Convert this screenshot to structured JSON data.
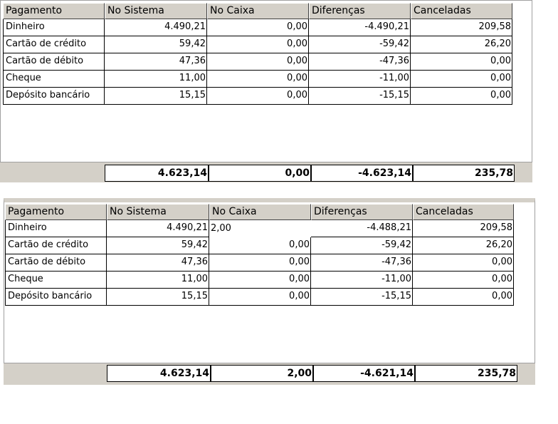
{
  "grids": [
    {
      "header": [
        "Pagamento",
        "No Sistema",
        "No Caixa",
        "Diferenças",
        "Canceladas"
      ],
      "rows": [
        [
          "Dinheiro",
          "4.490,21",
          "0,00",
          "-4.490,21",
          "209,58"
        ],
        [
          "Cartão de crédito",
          "59,42",
          "0,00",
          "-59,42",
          "26,20"
        ],
        [
          "Cartão de débito",
          "47,36",
          "0,00",
          "-47,36",
          "0,00"
        ],
        [
          "Cheque",
          "11,00",
          "0,00",
          "-11,00",
          "0,00"
        ],
        [
          "Depósito bancário",
          "15,15",
          "0,00",
          "-15,15",
          "0,00"
        ]
      ],
      "totals": [
        "4.623,14",
        "0,00",
        "-4.623,14",
        "235,78"
      ]
    },
    {
      "header": [
        "Pagamento",
        "No Sistema",
        "No Caixa",
        "Diferenças",
        "Canceladas"
      ],
      "rows": [
        [
          "Dinheiro",
          "4.490,21",
          "2,00",
          "-4.488,21",
          "209,58"
        ],
        [
          "Cartão de crédito",
          "59,42",
          "0,00",
          "-59,42",
          "26,20"
        ],
        [
          "Cartão de débito",
          "47,36",
          "0,00",
          "-47,36",
          "0,00"
        ],
        [
          "Cheque",
          "11,00",
          "0,00",
          "-11,00",
          "0,00"
        ],
        [
          "Depósito bancário",
          "15,15",
          "0,00",
          "-15,15",
          "0,00"
        ]
      ],
      "totals": [
        "4.623,14",
        "2,00",
        "-4.621,14",
        "235,78"
      ]
    }
  ]
}
